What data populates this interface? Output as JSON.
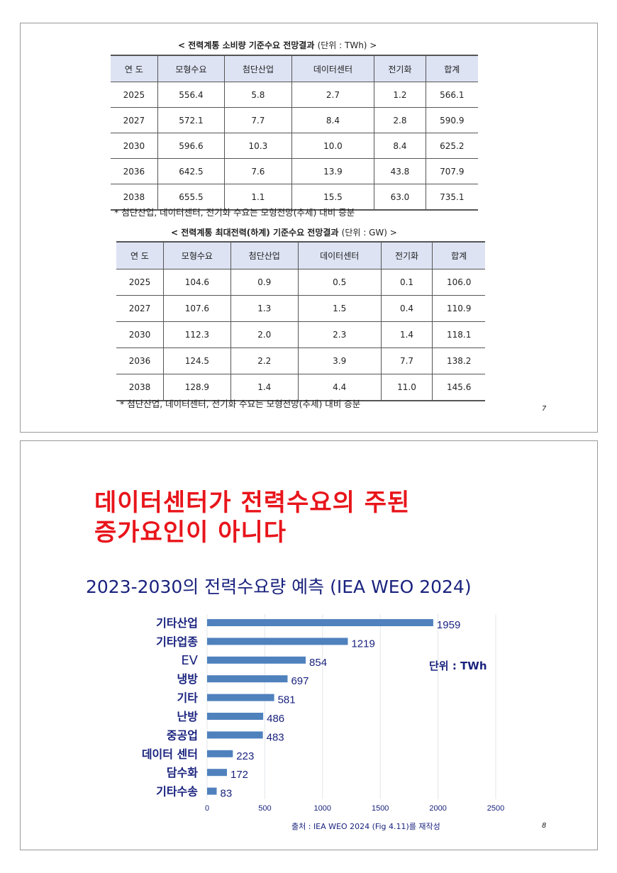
{
  "slide1": {
    "table1": {
      "title": "< 전력계통 소비량 기준수요 전망결과",
      "unit": "(단위 : TWh) >",
      "headers": [
        "연 도",
        "모형수요",
        "첨단산업",
        "데이터센터",
        "전기화",
        "합계"
      ],
      "rows": [
        [
          "2025",
          "556.4",
          "5.8",
          "2.7",
          "1.2",
          "566.1"
        ],
        [
          "2027",
          "572.1",
          "7.7",
          "8.4",
          "2.8",
          "590.9"
        ],
        [
          "2030",
          "596.6",
          "10.3",
          "10.0",
          "8.4",
          "625.2"
        ],
        [
          "2036",
          "642.5",
          "7.6",
          "13.9",
          "43.8",
          "707.9"
        ],
        [
          "2038",
          "655.5",
          "1.1",
          "15.5",
          "63.0",
          "735.1"
        ]
      ],
      "note": "* 첨단산업, 데이터센터, 전기화 수요는 모형전망(추세) 대비 증분"
    },
    "table2": {
      "title": "< 전력계통 최대전력(하계) 기준수요 전망결과",
      "unit": "(단위 : GW) >",
      "headers": [
        "연 도",
        "모형수요",
        "첨단산업",
        "데이터센터",
        "전기화",
        "합계"
      ],
      "rows": [
        [
          "2025",
          "104.6",
          "0.9",
          "0.5",
          "0.1",
          "106.0"
        ],
        [
          "2027",
          "107.6",
          "1.3",
          "1.5",
          "0.4",
          "110.9"
        ],
        [
          "2030",
          "112.3",
          "2.0",
          "2.3",
          "1.4",
          "118.1"
        ],
        [
          "2036",
          "124.5",
          "2.2",
          "3.9",
          "7.7",
          "138.2"
        ],
        [
          "2038",
          "128.9",
          "1.4",
          "4.4",
          "11.0",
          "145.6"
        ]
      ],
      "note": "* 첨단산업, 데이터센터, 전기화 수요는 모형전망(추세) 대비 증분"
    },
    "page": "7"
  },
  "slide2": {
    "headline1": "데이터센터가 전력수요의 주된",
    "headline2": "증가요인이 아니다",
    "headline_color": "#e8151b",
    "page": "8"
  },
  "chart_data": {
    "type": "bar",
    "orientation": "horizontal",
    "title": "2023-2030의 전력수요량 예측 (IEA WEO 2024)",
    "categories": [
      "기타산업",
      "기타업종",
      "EV",
      "냉방",
      "기타",
      "난방",
      "중공업",
      "데이터 센터",
      "담수화",
      "기타수송"
    ],
    "values": [
      1959,
      1219,
      854,
      697,
      581,
      486,
      483,
      223,
      172,
      83
    ],
    "xlim": [
      0,
      2500
    ],
    "xticks": [
      "0",
      "500",
      "1000",
      "1500",
      "2000",
      "2500"
    ],
    "unit_label": "단위 : TWh",
    "source": "출처 :  IEA WEO 2024 (Fig 4.11)를 재작성",
    "grid": true,
    "bar_color": "#4f81bd",
    "text_color": "#1a237e"
  }
}
